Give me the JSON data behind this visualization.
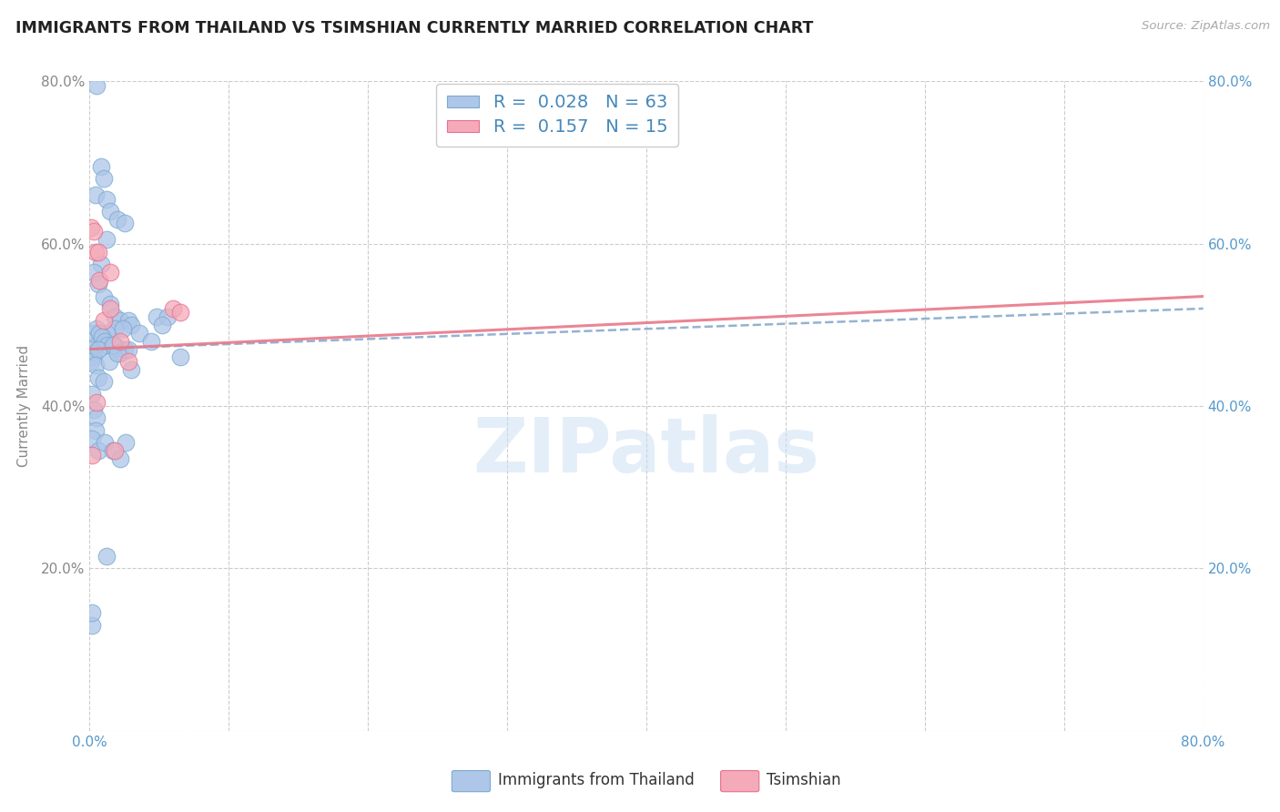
{
  "title": "IMMIGRANTS FROM THAILAND VS TSIMSHIAN CURRENTLY MARRIED CORRELATION CHART",
  "source": "Source: ZipAtlas.com",
  "ylabel": "Currently Married",
  "xlim": [
    0.0,
    0.8
  ],
  "ylim": [
    0.0,
    0.8
  ],
  "xticks": [
    0.0,
    0.1,
    0.2,
    0.3,
    0.4,
    0.5,
    0.6,
    0.7,
    0.8
  ],
  "yticks": [
    0.0,
    0.2,
    0.4,
    0.6,
    0.8
  ],
  "grid_color": "#cccccc",
  "blue_R": 0.028,
  "blue_N": 63,
  "pink_R": 0.157,
  "pink_N": 15,
  "blue_color": "#aec6e8",
  "pink_color": "#f4aab9",
  "blue_edge_color": "#7aaad0",
  "pink_edge_color": "#e87090",
  "blue_line_color": "#88aacc",
  "pink_line_color": "#e87888",
  "right_tick_color": "#5599cc",
  "legend_label_blue": "Immigrants from Thailand",
  "legend_label_pink": "Tsimshian",
  "blue_x": [
    0.005,
    0.008,
    0.01,
    0.004,
    0.012,
    0.015,
    0.02,
    0.025,
    0.012,
    0.008,
    0.003,
    0.006,
    0.01,
    0.015,
    0.018,
    0.022,
    0.028,
    0.03,
    0.018,
    0.012,
    0.007,
    0.005,
    0.003,
    0.002,
    0.001,
    0.003,
    0.005,
    0.007,
    0.009,
    0.011,
    0.013,
    0.006,
    0.018,
    0.022,
    0.025,
    0.03,
    0.004,
    0.006,
    0.01,
    0.014,
    0.028,
    0.024,
    0.002,
    0.003,
    0.005,
    0.004,
    0.002,
    0.006,
    0.011,
    0.017,
    0.022,
    0.026,
    0.012,
    0.017,
    0.02,
    0.002,
    0.002,
    0.065,
    0.048,
    0.056,
    0.052,
    0.036,
    0.044
  ],
  "blue_y": [
    0.795,
    0.695,
    0.68,
    0.66,
    0.655,
    0.64,
    0.63,
    0.625,
    0.605,
    0.575,
    0.565,
    0.55,
    0.535,
    0.525,
    0.51,
    0.505,
    0.505,
    0.5,
    0.495,
    0.49,
    0.48,
    0.475,
    0.465,
    0.46,
    0.455,
    0.49,
    0.495,
    0.49,
    0.485,
    0.48,
    0.475,
    0.47,
    0.475,
    0.465,
    0.47,
    0.445,
    0.45,
    0.435,
    0.43,
    0.455,
    0.47,
    0.495,
    0.415,
    0.395,
    0.385,
    0.37,
    0.36,
    0.345,
    0.355,
    0.345,
    0.335,
    0.355,
    0.215,
    0.475,
    0.465,
    0.13,
    0.145,
    0.46,
    0.51,
    0.51,
    0.5,
    0.49,
    0.48
  ],
  "pink_x": [
    0.001,
    0.004,
    0.007,
    0.01,
    0.015,
    0.003,
    0.006,
    0.015,
    0.022,
    0.028,
    0.005,
    0.018,
    0.002,
    0.06,
    0.065
  ],
  "pink_y": [
    0.62,
    0.59,
    0.555,
    0.505,
    0.52,
    0.615,
    0.59,
    0.565,
    0.48,
    0.455,
    0.405,
    0.345,
    0.34,
    0.52,
    0.515
  ],
  "blue_line_x0": 0.0,
  "blue_line_y0": 0.47,
  "blue_line_x1": 0.8,
  "blue_line_y1": 0.52,
  "pink_line_x0": 0.0,
  "pink_line_y0": 0.47,
  "pink_line_x1": 0.8,
  "pink_line_y1": 0.535,
  "watermark": "ZIPatlas"
}
